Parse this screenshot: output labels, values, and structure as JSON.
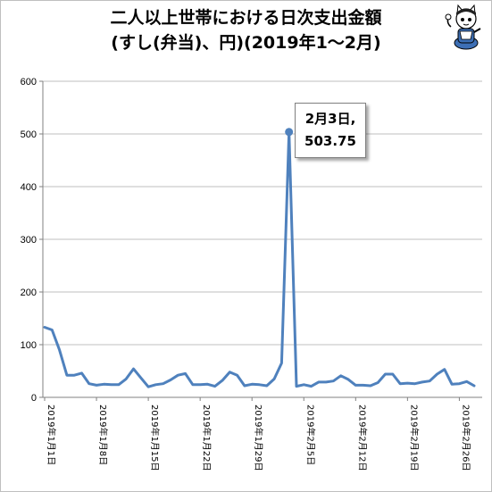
{
  "title": {
    "line1": "二人以上世帯における日次支出金額",
    "line2": "(すし(弁当)、円)(2019年1～2月)"
  },
  "annotation": {
    "line1": "2月3日,",
    "line2": "503.75"
  },
  "colors": {
    "series": "#4f81bd",
    "grid": "#bfbfbf",
    "axis": "#808080"
  },
  "mascot_icon": "cartoon-cat-mascot-icon",
  "chart_data": {
    "type": "line",
    "title": "二人以上世帯における日次支出金額(すし(弁当)、円)(2019年1～2月)",
    "xlabel": "",
    "ylabel": "",
    "ylim": [
      0,
      600
    ],
    "yticks": [
      0,
      100,
      200,
      300,
      400,
      500,
      600
    ],
    "grid": true,
    "legend": "none",
    "x_tick_labels": [
      "2019年1月1日",
      "2019年1月8日",
      "2019年1月15日",
      "2019年1月22日",
      "2019年1月29日",
      "2019年2月5日",
      "2019年2月12日",
      "2019年2月19日",
      "2019年2月26日"
    ],
    "series": [
      {
        "values": [
          133,
          128,
          90,
          42,
          42,
          46,
          26,
          23,
          25,
          24,
          24,
          35,
          54,
          37,
          20,
          24,
          26,
          33,
          42,
          45,
          24,
          24,
          25,
          21,
          32,
          48,
          42,
          22,
          25,
          24,
          22,
          35,
          65,
          503.75,
          21,
          24,
          21,
          29,
          29,
          31,
          41,
          34,
          23,
          23,
          22,
          28,
          44,
          44,
          26,
          27,
          26,
          29,
          31,
          44,
          53,
          25,
          26,
          30,
          22
        ]
      }
    ]
  }
}
